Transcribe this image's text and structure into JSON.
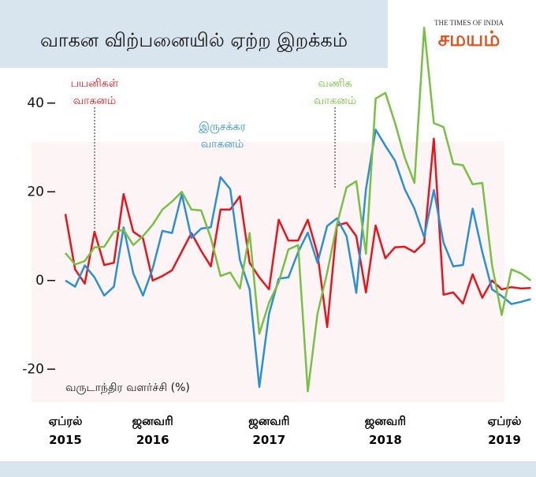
{
  "chart_data": {
    "type": "line",
    "title": "வாகன விற்பனையில் ஏற்ற இறக்கம்",
    "brand_small": "THE TIMES OF INDIA",
    "brand_large": "சமயம்",
    "y_label": "வருடாந்திர வளர்ச்சி (%)",
    "categories": [
      "ஏப்ரல் 2015",
      null,
      null,
      null,
      null,
      null,
      null,
      null,
      null,
      "ஜனவரி 2016",
      null,
      null,
      null,
      null,
      null,
      null,
      null,
      null,
      null,
      null,
      null,
      "ஜனவரி 2017",
      null,
      null,
      null,
      null,
      null,
      null,
      null,
      null,
      null,
      null,
      null,
      "ஜனவரி 2018",
      null,
      null,
      null,
      null,
      null,
      null,
      null,
      null,
      null,
      null,
      null,
      null,
      null,
      null,
      "ஏப்ரல் 2019"
    ],
    "series": [
      {
        "name": "பயனிகள் வாகனம்",
        "color": "#e8141b",
        "values": [
          15,
          2.5,
          -0.7,
          11,
          3.5,
          4,
          19.5,
          11,
          9.5,
          0,
          1,
          2.3,
          6.5,
          10.7,
          6.7,
          3.2,
          16,
          16,
          19,
          4,
          0.7,
          -2,
          13.7,
          9,
          9,
          13.7,
          6,
          -10.5,
          12.4,
          13,
          10,
          -2.7,
          12.4,
          5,
          7.5,
          7.6,
          6.4,
          8.5,
          32,
          -3.2,
          -2.7,
          -5.2,
          1.4,
          -3.9,
          0,
          -2,
          -1.5,
          -1.8,
          -1.7
        ]
      },
      {
        "name": "இருசக்கர வாகனம்",
        "color": "#2a8fd4",
        "values": [
          0,
          -1.4,
          3.4,
          0.7,
          -3.4,
          -1.4,
          12,
          1.6,
          -3.4,
          2.7,
          11.2,
          10.7,
          19.5,
          9.6,
          11.7,
          12,
          23.3,
          20.6,
          4.6,
          -2,
          -24,
          -7.5,
          0.4,
          0.7,
          6.4,
          10.8,
          4,
          12.3,
          14,
          10,
          -2.8,
          20.6,
          34,
          30.4,
          27,
          20.6,
          16.2,
          9.8,
          20.4,
          8.5,
          3.2,
          3.5,
          16.2,
          6.4,
          -2,
          -3.5,
          -5.3,
          -4.8,
          -4.2
        ]
      },
      {
        "name": "வணிக வாகனம்",
        "color": "#77c043",
        "values": [
          6.2,
          3.6,
          4.4,
          7.5,
          7.6,
          11,
          11.4,
          8,
          10,
          12.6,
          16,
          17.8,
          20,
          16,
          15.8,
          9.6,
          1,
          1.8,
          -1.8,
          10.7,
          -12,
          -5,
          -0.4,
          7,
          8,
          -25,
          -7.5,
          1.8,
          12.6,
          21,
          22.4,
          6,
          41,
          42.3,
          35.5,
          27.7,
          22,
          57,
          35.5,
          34.6,
          26.3,
          26,
          21.7,
          22,
          3.5,
          -7.8,
          2.5,
          1.6,
          0
        ]
      }
    ],
    "ylim": [
      -26,
      58
    ],
    "yticks": [
      -20,
      0,
      20,
      40
    ]
  }
}
